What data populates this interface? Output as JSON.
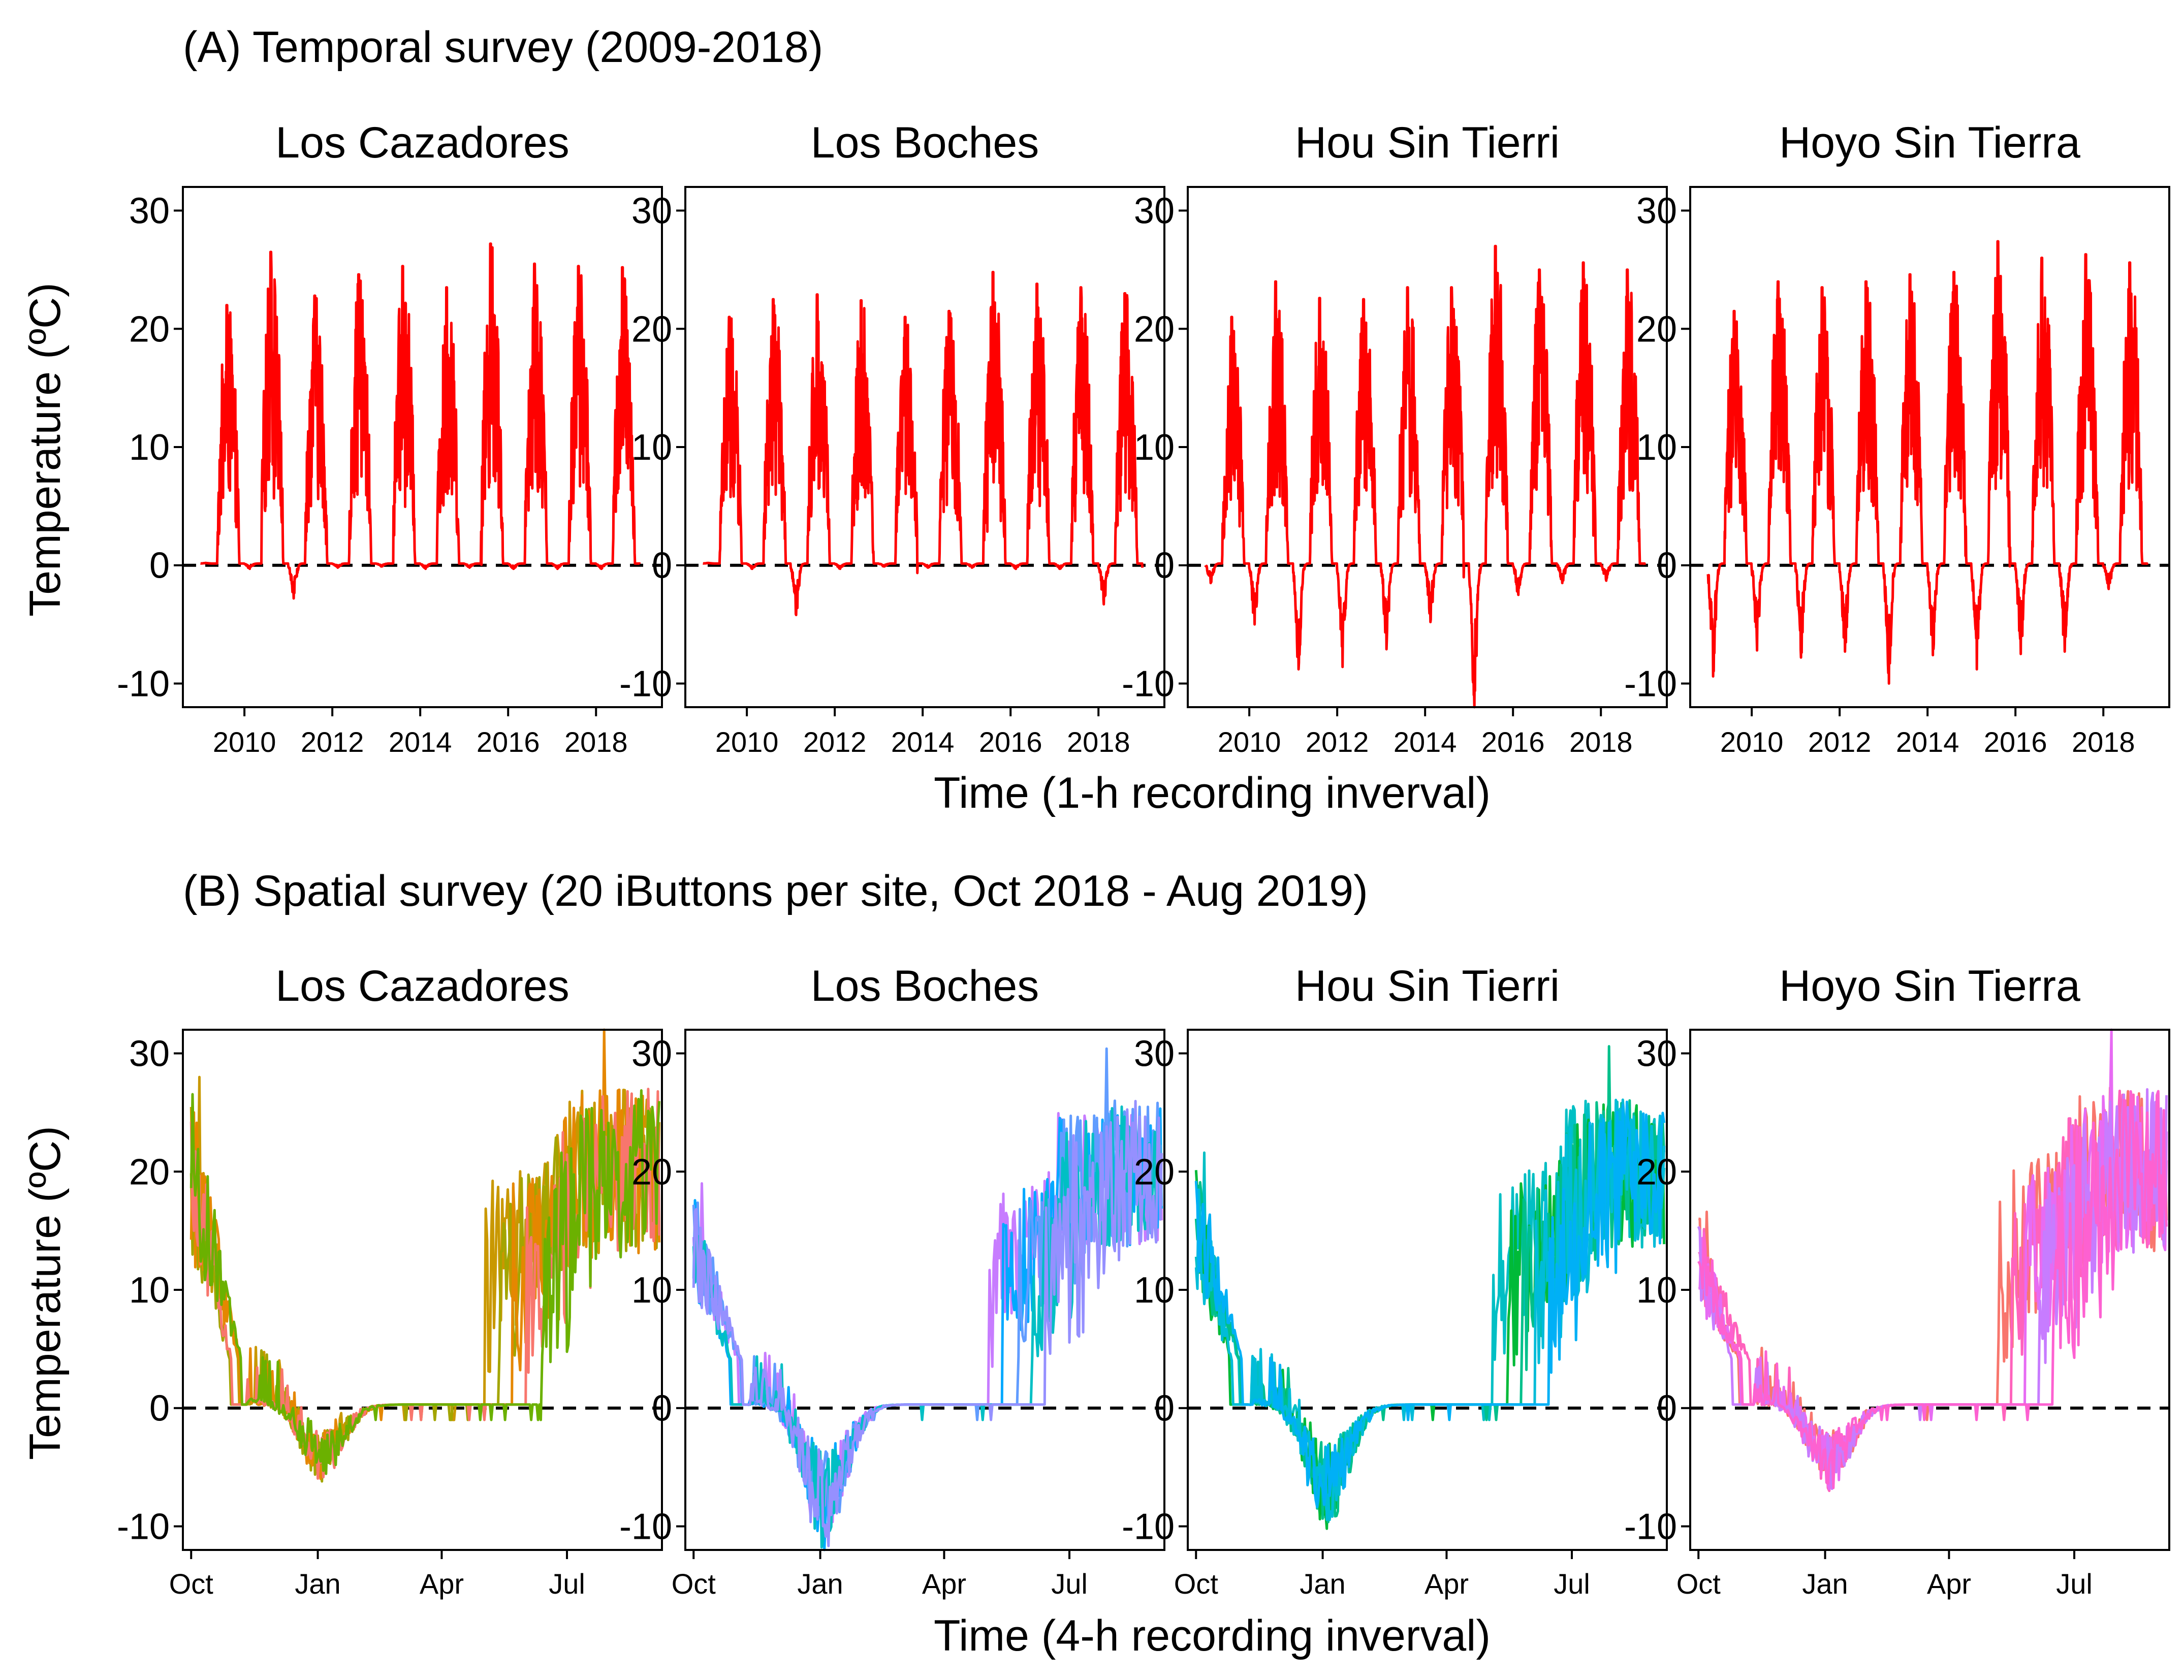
{
  "sections": [
    {
      "id": "A",
      "title": "(A) Temporal survey (2009-2018)",
      "xlabel": "Time (1-h recording inverval)",
      "ylabel": "Temperature (ºC)"
    },
    {
      "id": "B",
      "title": "(B) Spatial survey (20 iButtons per site, Oct 2018 - Aug 2019)",
      "xlabel": "Time (4-h recording inverval)",
      "ylabel": "Temperature (ºC)"
    }
  ],
  "chart_data": [
    {
      "type": "line",
      "section": "A",
      "facets": [
        "Los Cazadores",
        "Los Boches",
        "Hou Sin Tierri",
        "Hoyo Sin Tierra"
      ],
      "x_unit": "year",
      "xlim": [
        2008.6,
        2019.5
      ],
      "x_ticks": [
        2010,
        2012,
        2014,
        2016,
        2018
      ],
      "x_tick_labels": [
        "2010",
        "2012",
        "2014",
        "2016",
        "2018"
      ],
      "ylim": [
        -12,
        32
      ],
      "y_ticks": [
        -10,
        0,
        10,
        20,
        30
      ],
      "y_tick_labels": [
        "-10",
        "0",
        "10",
        "20",
        "30"
      ],
      "reference_line": {
        "y": 0,
        "style": "dashed",
        "color": "#000000"
      },
      "grid": false,
      "legend": "none",
      "series_color": "#FF0000",
      "series": [
        {
          "facet": "Los Cazadores",
          "start": 2009.0,
          "end": 2019.0,
          "summer_max": [
            22,
            26.5,
            22.8,
            24.6,
            25.3,
            23.5,
            27.2,
            25.5,
            25.3,
            25.2
          ],
          "winter_min": [
            0.2,
            -0.3,
            -2.8,
            -0.2,
            -0.1,
            -0.3,
            -0.2,
            -0.3,
            -0.3,
            -0.3
          ]
        },
        {
          "facet": "Los Boches",
          "start": 2009.0,
          "end": 2019.0,
          "summer_max": [
            21,
            22.5,
            22.9,
            22.4,
            21.0,
            21.5,
            24.8,
            23.8,
            23.5,
            23.0
          ],
          "winter_min": [
            0.2,
            -0.3,
            -4.2,
            -0.3,
            -0.1,
            -0.2,
            -0.2,
            -0.3,
            -0.3,
            -3.3
          ]
        },
        {
          "facet": "Hou Sin Tierri",
          "start": 2009.0,
          "end": 2019.0,
          "summer_max": [
            21,
            24,
            22.6,
            22.5,
            23.5,
            23.5,
            27.0,
            25.0,
            25.6,
            25.0
          ],
          "winter_min": [
            -1.5,
            -5.0,
            -8.8,
            -8.6,
            -7.1,
            -4.8,
            -12.0,
            -2.5,
            -1.5,
            -1.3
          ]
        },
        {
          "facet": "Hoyo Sin Tierra",
          "start": 2009.0,
          "end": 2019.0,
          "summer_max": [
            21.5,
            24,
            23.5,
            24,
            24.6,
            24.8,
            27.4,
            26.0,
            26.3,
            25.6
          ],
          "winter_min": [
            -9.4,
            -7.2,
            -7.8,
            -7.3,
            -10.0,
            -7.6,
            -8.8,
            -7.5,
            -7.3,
            -2.0
          ]
        }
      ]
    },
    {
      "type": "line",
      "section": "B",
      "facets": [
        "Los Cazadores",
        "Los Boches",
        "Hou Sin Tierri",
        "Hoyo Sin Tierra"
      ],
      "x_unit": "month",
      "xlim": [
        "2018-09-25",
        "2019-09-08"
      ],
      "x_ticks": [
        "2018-10-01",
        "2019-01-01",
        "2019-04-01",
        "2019-07-01"
      ],
      "x_tick_labels": [
        "Oct",
        "Jan",
        "Apr",
        "Jul"
      ],
      "ylim": [
        -12,
        32
      ],
      "y_ticks": [
        -10,
        0,
        10,
        20,
        30
      ],
      "y_tick_labels": [
        "-10",
        "0",
        "10",
        "20",
        "30"
      ],
      "reference_line": {
        "y": 0,
        "style": "dashed",
        "color": "#000000"
      },
      "grid": false,
      "legend": "none",
      "series": [
        {
          "facet": "Los Cazadores",
          "colors": [
            "#C99800",
            "#A3A500",
            "#E58700",
            "#F8766D",
            "#6BB100"
          ],
          "autumn_max": 28,
          "winter_min": -6.2,
          "spring_max": 25.6,
          "summer_max": 32
        },
        {
          "facet": "Los Boches",
          "colors": [
            "#C77CFF",
            "#00A9FF",
            "#619CFF",
            "#00BFC4",
            "#9590FF"
          ],
          "autumn_max": 19,
          "winter_min": -12,
          "spring_max": 23,
          "summer_max": 30.4
        },
        {
          "facet": "Hou Sin Tierri",
          "colors": [
            "#00BFC4",
            "#00BA38",
            "#00C08B",
            "#00BCD8",
            "#00B0F6"
          ],
          "autumn_max": 21.6,
          "winter_min": -10.2,
          "spring_max": 24.5,
          "summer_max": 30.6
        },
        {
          "facet": "Hoyo Sin Tierra",
          "colors": [
            "#F8766D",
            "#FF62BC",
            "#E76BF3",
            "#C77CFF",
            "#FD61D1"
          ],
          "autumn_max": 16.6,
          "winter_min": -7.0,
          "spring_max": 25.7,
          "summer_max": 32
        }
      ]
    }
  ]
}
